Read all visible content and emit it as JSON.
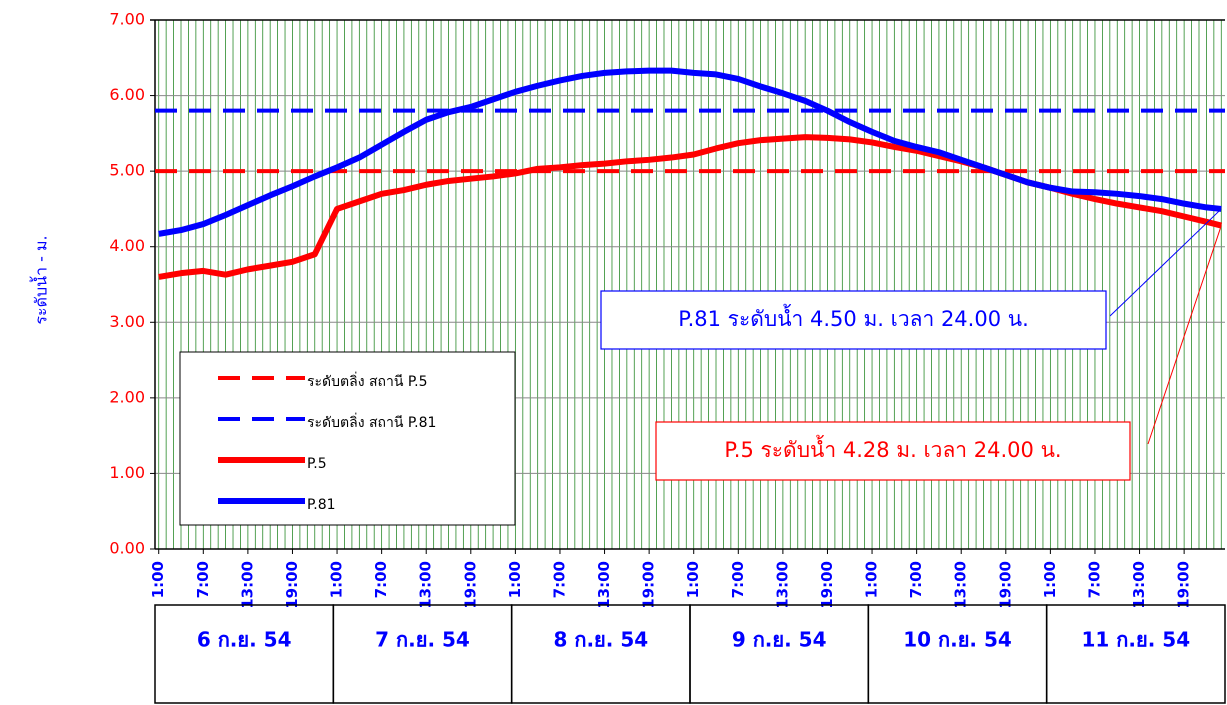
{
  "chart_data": {
    "type": "line",
    "ylabel": "ระดับน้ำ - ม.",
    "xlim": [
      -0.5,
      143.5
    ],
    "xticks": [
      {
        "value": 0,
        "label": "1:00"
      },
      {
        "value": 6,
        "label": "7:00"
      },
      {
        "value": 12,
        "label": "13:00"
      },
      {
        "value": 18,
        "label": "19:00"
      },
      {
        "value": 24,
        "label": "1:00"
      },
      {
        "value": 30,
        "label": "7:00"
      },
      {
        "value": 36,
        "label": "13:00"
      },
      {
        "value": 42,
        "label": "19:00"
      },
      {
        "value": 48,
        "label": "1:00"
      },
      {
        "value": 54,
        "label": "7:00"
      },
      {
        "value": 60,
        "label": "13:00"
      },
      {
        "value": 66,
        "label": "19:00"
      },
      {
        "value": 72,
        "label": "1:00"
      },
      {
        "value": 78,
        "label": "7:00"
      },
      {
        "value": 84,
        "label": "13:00"
      },
      {
        "value": 90,
        "label": "19:00"
      },
      {
        "value": 96,
        "label": "1:00"
      },
      {
        "value": 102,
        "label": "7:00"
      },
      {
        "value": 108,
        "label": "13:00"
      },
      {
        "value": 114,
        "label": "19:00"
      },
      {
        "value": 120,
        "label": "1:00"
      },
      {
        "value": 126,
        "label": "7:00"
      },
      {
        "value": 132,
        "label": "13:00"
      },
      {
        "value": 138,
        "label": "19:00"
      }
    ],
    "ylim": [
      0,
      7
    ],
    "yticks": [
      {
        "value": 0,
        "label": "0.00"
      },
      {
        "value": 1,
        "label": "1.00"
      },
      {
        "value": 2,
        "label": "2.00"
      },
      {
        "value": 3,
        "label": "3.00"
      },
      {
        "value": 4,
        "label": "4.00"
      },
      {
        "value": 5,
        "label": "5.00"
      },
      {
        "value": 6,
        "label": "6.00"
      },
      {
        "value": 7,
        "label": "7.00"
      }
    ],
    "grid": true,
    "days": [
      "6 ก.ย. 54",
      "7 ก.ย. 54",
      "8 ก.ย. 54",
      "9 ก.ย. 54",
      "10 ก.ย. 54",
      "11 ก.ย. 54"
    ],
    "x": [
      0,
      3,
      6,
      9,
      12,
      15,
      18,
      21,
      24,
      27,
      30,
      33,
      36,
      39,
      42,
      45,
      48,
      51,
      54,
      57,
      60,
      63,
      66,
      69,
      72,
      75,
      78,
      81,
      84,
      87,
      90,
      93,
      96,
      99,
      102,
      105,
      108,
      111,
      114,
      117,
      120,
      123,
      126,
      129,
      132,
      135,
      138,
      141,
      143
    ],
    "series": [
      {
        "name": "ระดับตลิ่ง สถานี P.5",
        "color": "#ff0000",
        "style": "dashed",
        "x": [
          -0.5,
          143.5
        ],
        "values": [
          5.0,
          5.0
        ]
      },
      {
        "name": "ระดับตลิ่ง สถานี P.81",
        "color": "#0000ff",
        "style": "dashed",
        "x": [
          -0.5,
          143.5
        ],
        "values": [
          5.8,
          5.8
        ]
      },
      {
        "name": "P.5",
        "color": "#ff0000",
        "style": "solid",
        "values": [
          3.6,
          3.65,
          3.68,
          3.63,
          3.7,
          3.75,
          3.8,
          3.9,
          4.5,
          4.6,
          4.7,
          4.75,
          4.82,
          4.87,
          4.9,
          4.93,
          4.97,
          5.03,
          5.05,
          5.08,
          5.1,
          5.13,
          5.15,
          5.18,
          5.22,
          5.3,
          5.37,
          5.41,
          5.43,
          5.45,
          5.44,
          5.42,
          5.38,
          5.32,
          5.27,
          5.2,
          5.13,
          5.05,
          4.95,
          4.85,
          4.78,
          4.7,
          4.63,
          4.57,
          4.52,
          4.47,
          4.4,
          4.33,
          4.28
        ]
      },
      {
        "name": "P.81",
        "color": "#0000ff",
        "style": "solid",
        "values": [
          4.17,
          4.22,
          4.3,
          4.42,
          4.55,
          4.68,
          4.8,
          4.93,
          5.05,
          5.18,
          5.35,
          5.52,
          5.68,
          5.78,
          5.85,
          5.95,
          6.05,
          6.13,
          6.2,
          6.26,
          6.3,
          6.32,
          6.33,
          6.33,
          6.3,
          6.28,
          6.22,
          6.12,
          6.03,
          5.93,
          5.8,
          5.65,
          5.52,
          5.4,
          5.32,
          5.25,
          5.15,
          5.05,
          4.95,
          4.85,
          4.78,
          4.73,
          4.72,
          4.7,
          4.67,
          4.63,
          4.57,
          4.52,
          4.5
        ]
      }
    ],
    "annotations": [
      {
        "text": "P.81 ระดับน้ำ 4.50 ม. เวลา 24.00 น.",
        "color": "#0000ff",
        "series": 3
      },
      {
        "text": "P.5 ระดับน้ำ 4.28 ม. เวลา 24.00 น.",
        "color": "#ff0000",
        "series": 2
      }
    ]
  }
}
